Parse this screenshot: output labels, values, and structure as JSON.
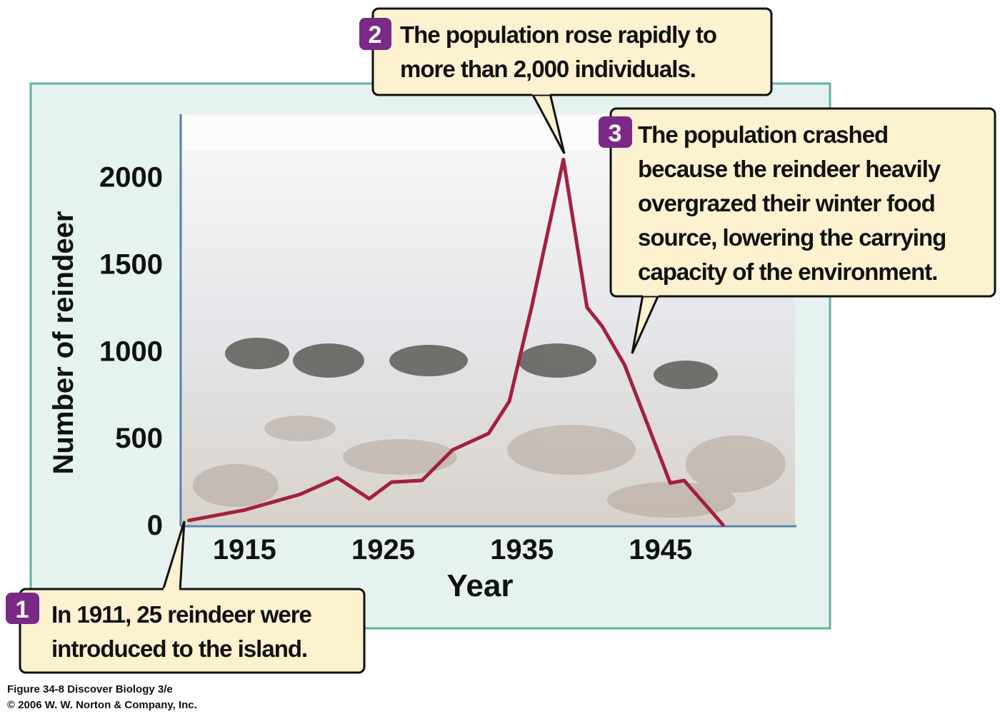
{
  "chart_data": {
    "type": "line",
    "xlabel": "Year",
    "ylabel": "Number of reindeer",
    "x": [
      1911,
      1915,
      1919,
      1921.7,
      1924,
      1925.6,
      1927.8,
      1930,
      1932.6,
      1934.1,
      1935.7,
      1938,
      1939.7,
      1940.8,
      1942.4,
      1945.7,
      1946.7,
      1949.5
    ],
    "values": [
      25,
      85,
      175,
      270,
      150,
      245,
      255,
      430,
      525,
      710,
      1250,
      2100,
      1250,
      1140,
      920,
      240,
      255,
      0
    ],
    "color": "#a3203f",
    "xlim": [
      1910.4,
      1954.8
    ],
    "xticks": [
      1915,
      1925,
      1935,
      1945
    ],
    "ylim": [
      0,
      2360
    ],
    "yticks": [
      0,
      500,
      1000,
      1500,
      2000
    ],
    "annotations": [
      {
        "number": 1,
        "lines": [
          "In 1911, 25 reindeer were",
          "introduced to the island."
        ]
      },
      {
        "number": 2,
        "lines": [
          "The population rose rapidly to",
          "more than 2,000 individuals."
        ]
      },
      {
        "number": 3,
        "lines": [
          "The population crashed",
          "because the reindeer heavily",
          "overgrazed their winter food",
          "source, lowering the carrying",
          "capacity of the environment."
        ]
      }
    ],
    "footer": [
      "Figure 34-8  Discover Biology 3/e",
      "© 2006 W. W. Norton & Company, Inc."
    ]
  }
}
